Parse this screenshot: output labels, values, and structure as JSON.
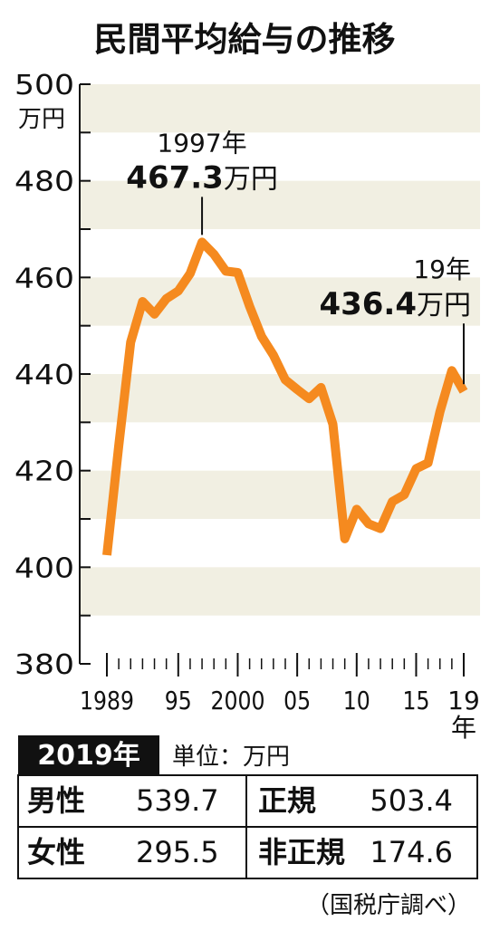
{
  "chart_data": {
    "type": "line",
    "title": "民間平均給与の推移",
    "y_unit": "万円",
    "color": "#f58a1f",
    "x": [
      1989,
      1990,
      1991,
      1992,
      1993,
      1994,
      1995,
      1996,
      1997,
      1998,
      1999,
      2000,
      2001,
      2002,
      2003,
      2004,
      2005,
      2006,
      2007,
      2008,
      2009,
      2010,
      2011,
      2012,
      2013,
      2014,
      2015,
      2016,
      2017,
      2018,
      2019
    ],
    "values": [
      402.5,
      425.2,
      446.6,
      455.0,
      452.4,
      455.6,
      457.2,
      460.8,
      467.3,
      464.8,
      461.3,
      461.0,
      454.0,
      447.8,
      443.9,
      438.8,
      436.8,
      434.9,
      437.2,
      429.6,
      405.9,
      412.0,
      409.0,
      408.0,
      413.6,
      415.0,
      420.4,
      421.6,
      432.2,
      440.7,
      436.4
    ],
    "xlim": [
      1989,
      2019
    ],
    "ylim": [
      380,
      500
    ],
    "yticks": [
      380,
      400,
      420,
      440,
      460,
      480,
      500
    ],
    "xticks": [
      1989,
      {
        "value": 1995,
        "label": "95"
      },
      2000,
      {
        "value": 2005,
        "label": "05"
      },
      {
        "value": 2010,
        "label": "10"
      },
      {
        "value": 2015,
        "label": "15"
      },
      {
        "value": 2019,
        "label": "19年"
      }
    ],
    "annotations": [
      {
        "label": "1997年",
        "value": 467.3,
        "index": 8
      },
      {
        "label": "19年",
        "value": 436.4,
        "index": 30
      }
    ]
  },
  "table": {
    "year": "2019年",
    "unit_label": "単位：万円",
    "rows": [
      [
        "男性",
        "539.7",
        "正規",
        "503.4"
      ],
      [
        "女性",
        "295.5",
        "非正規",
        "174.6"
      ]
    ]
  },
  "source": "（国税庁調べ）"
}
